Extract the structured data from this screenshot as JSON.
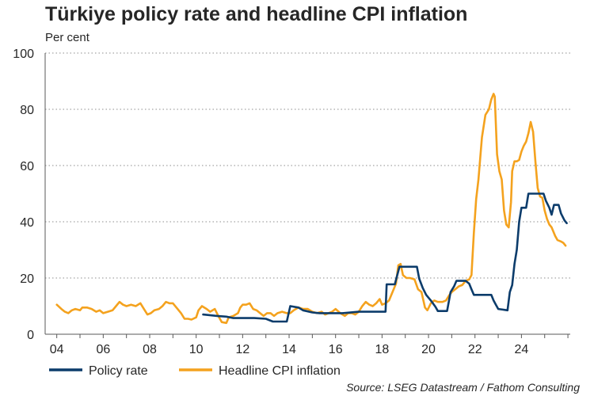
{
  "chart_data": {
    "type": "line",
    "title": "Türkiye policy rate and headline CPI inflation",
    "ylabel": "Per cent",
    "xlabel": "",
    "source": "Source: LSEG Datastream / Fathom Consulting",
    "xlim": [
      2003.5,
      2026.1
    ],
    "ylim": [
      0,
      100
    ],
    "yticks": [
      0,
      20,
      40,
      60,
      80,
      100
    ],
    "xticks": [
      2004,
      2006,
      2008,
      2010,
      2012,
      2014,
      2016,
      2018,
      2020,
      2022,
      2024
    ],
    "xtick_labels": [
      "04",
      "06",
      "08",
      "10",
      "12",
      "14",
      "16",
      "18",
      "20",
      "22",
      "24"
    ],
    "legend_position": "bottom-left",
    "series": [
      {
        "name": "Policy rate",
        "color": "#0c3c6b",
        "points": [
          [
            2010.3,
            7
          ],
          [
            2010.9,
            6.5
          ],
          [
            2011.3,
            6.25
          ],
          [
            2011.6,
            5.75
          ],
          [
            2012.5,
            5.75
          ],
          [
            2013.0,
            5.5
          ],
          [
            2013.3,
            4.5
          ],
          [
            2013.9,
            4.5
          ],
          [
            2014.05,
            10
          ],
          [
            2014.4,
            9.5
          ],
          [
            2014.6,
            8.5
          ],
          [
            2015.0,
            7.75
          ],
          [
            2015.3,
            7.5
          ],
          [
            2016.3,
            7.5
          ],
          [
            2017.0,
            8
          ],
          [
            2018.0,
            8
          ],
          [
            2018.15,
            8
          ],
          [
            2018.2,
            17.75
          ],
          [
            2018.55,
            17.75
          ],
          [
            2018.75,
            24
          ],
          [
            2019.5,
            24
          ],
          [
            2019.6,
            19.75
          ],
          [
            2019.75,
            16.5
          ],
          [
            2019.9,
            14
          ],
          [
            2020.1,
            12
          ],
          [
            2020.3,
            9.75
          ],
          [
            2020.4,
            8.25
          ],
          [
            2020.8,
            8.25
          ],
          [
            2020.95,
            15
          ],
          [
            2021.1,
            17
          ],
          [
            2021.2,
            19
          ],
          [
            2021.6,
            19
          ],
          [
            2021.75,
            18
          ],
          [
            2021.85,
            16
          ],
          [
            2021.95,
            14
          ],
          [
            2022.7,
            14
          ],
          [
            2022.8,
            12
          ],
          [
            2022.9,
            10.5
          ],
          [
            2023.0,
            9
          ],
          [
            2023.4,
            8.5
          ],
          [
            2023.5,
            15
          ],
          [
            2023.6,
            17.5
          ],
          [
            2023.7,
            25
          ],
          [
            2023.8,
            30
          ],
          [
            2023.9,
            40
          ],
          [
            2024.0,
            45
          ],
          [
            2024.2,
            45
          ],
          [
            2024.3,
            50
          ],
          [
            2024.95,
            50
          ],
          [
            2025.05,
            47.5
          ],
          [
            2025.2,
            45
          ],
          [
            2025.3,
            42.5
          ],
          [
            2025.4,
            46
          ],
          [
            2025.6,
            46
          ],
          [
            2025.7,
            43
          ],
          [
            2025.85,
            40.5
          ],
          [
            2025.95,
            39.5
          ]
        ]
      },
      {
        "name": "Headline CPI inflation",
        "color": "#f4a21e",
        "points": [
          [
            2004.0,
            10.5
          ],
          [
            2004.2,
            9
          ],
          [
            2004.35,
            8
          ],
          [
            2004.5,
            7.5
          ],
          [
            2004.65,
            8.5
          ],
          [
            2004.8,
            9
          ],
          [
            2005.0,
            8.5
          ],
          [
            2005.1,
            9.5
          ],
          [
            2005.3,
            9.5
          ],
          [
            2005.5,
            9
          ],
          [
            2005.7,
            8
          ],
          [
            2005.85,
            8.5
          ],
          [
            2006.0,
            7.5
          ],
          [
            2006.2,
            8
          ],
          [
            2006.4,
            8.5
          ],
          [
            2006.55,
            10
          ],
          [
            2006.7,
            11.5
          ],
          [
            2006.85,
            10.5
          ],
          [
            2007.0,
            10
          ],
          [
            2007.2,
            10.5
          ],
          [
            2007.4,
            10
          ],
          [
            2007.6,
            11
          ],
          [
            2007.75,
            9
          ],
          [
            2007.9,
            7
          ],
          [
            2008.05,
            7.5
          ],
          [
            2008.2,
            8.5
          ],
          [
            2008.4,
            9
          ],
          [
            2008.55,
            10
          ],
          [
            2008.7,
            11.5
          ],
          [
            2008.85,
            11
          ],
          [
            2009.0,
            11
          ],
          [
            2009.2,
            9
          ],
          [
            2009.35,
            7.5
          ],
          [
            2009.5,
            5.5
          ],
          [
            2009.65,
            5.5
          ],
          [
            2009.8,
            5.2
          ],
          [
            2010.0,
            6
          ],
          [
            2010.1,
            8.5
          ],
          [
            2010.25,
            10
          ],
          [
            2010.45,
            9
          ],
          [
            2010.6,
            8
          ],
          [
            2010.8,
            9
          ],
          [
            2010.95,
            6.5
          ],
          [
            2011.1,
            4.3
          ],
          [
            2011.3,
            4
          ],
          [
            2011.4,
            6
          ],
          [
            2011.6,
            6.5
          ],
          [
            2011.8,
            7.5
          ],
          [
            2011.9,
            9.5
          ],
          [
            2012.0,
            10.5
          ],
          [
            2012.15,
            10.5
          ],
          [
            2012.3,
            11
          ],
          [
            2012.45,
            9
          ],
          [
            2012.6,
            8.5
          ],
          [
            2012.75,
            7.5
          ],
          [
            2012.9,
            6.5
          ],
          [
            2013.05,
            7.5
          ],
          [
            2013.2,
            7.5
          ],
          [
            2013.35,
            6.5
          ],
          [
            2013.5,
            7.5
          ],
          [
            2013.7,
            8
          ],
          [
            2013.9,
            7.5
          ],
          [
            2014.05,
            7.5
          ],
          [
            2014.2,
            8.5
          ],
          [
            2014.4,
            9.5
          ],
          [
            2014.6,
            9
          ],
          [
            2014.8,
            9
          ],
          [
            2015.0,
            8
          ],
          [
            2015.2,
            7.5
          ],
          [
            2015.4,
            8
          ],
          [
            2015.55,
            7
          ],
          [
            2015.7,
            7.5
          ],
          [
            2015.85,
            8
          ],
          [
            2016.0,
            9
          ],
          [
            2016.2,
            7.5
          ],
          [
            2016.4,
            6.5
          ],
          [
            2016.55,
            7.5
          ],
          [
            2016.7,
            7.5
          ],
          [
            2016.85,
            7
          ],
          [
            2017.0,
            8
          ],
          [
            2017.15,
            10
          ],
          [
            2017.3,
            11.5
          ],
          [
            2017.45,
            10.5
          ],
          [
            2017.6,
            10
          ],
          [
            2017.75,
            11
          ],
          [
            2017.9,
            12.5
          ],
          [
            2018.0,
            10.5
          ],
          [
            2018.15,
            11
          ],
          [
            2018.3,
            12
          ],
          [
            2018.45,
            15
          ],
          [
            2018.6,
            18
          ],
          [
            2018.7,
            24.5
          ],
          [
            2018.8,
            25
          ],
          [
            2018.9,
            21
          ],
          [
            2019.05,
            20
          ],
          [
            2019.2,
            20
          ],
          [
            2019.4,
            19.5
          ],
          [
            2019.55,
            16
          ],
          [
            2019.7,
            15
          ],
          [
            2019.85,
            9.5
          ],
          [
            2019.95,
            8.5
          ],
          [
            2020.1,
            11
          ],
          [
            2020.25,
            12
          ],
          [
            2020.4,
            11.5
          ],
          [
            2020.6,
            11.5
          ],
          [
            2020.75,
            12
          ],
          [
            2020.9,
            14
          ],
          [
            2021.0,
            15
          ],
          [
            2021.15,
            16
          ],
          [
            2021.3,
            17
          ],
          [
            2021.45,
            17.5
          ],
          [
            2021.6,
            19
          ],
          [
            2021.75,
            19.5
          ],
          [
            2021.85,
            21
          ],
          [
            2021.95,
            36
          ],
          [
            2022.05,
            48
          ],
          [
            2022.15,
            55
          ],
          [
            2022.3,
            70
          ],
          [
            2022.45,
            78
          ],
          [
            2022.6,
            80
          ],
          [
            2022.7,
            83.5
          ],
          [
            2022.8,
            85.5
          ],
          [
            2022.85,
            84.5
          ],
          [
            2022.95,
            64
          ],
          [
            2023.05,
            58
          ],
          [
            2023.15,
            55
          ],
          [
            2023.25,
            44
          ],
          [
            2023.35,
            39
          ],
          [
            2023.45,
            38
          ],
          [
            2023.55,
            47
          ],
          [
            2023.6,
            58
          ],
          [
            2023.7,
            61.5
          ],
          [
            2023.8,
            61.5
          ],
          [
            2023.9,
            62
          ],
          [
            2024.0,
            65
          ],
          [
            2024.1,
            67
          ],
          [
            2024.2,
            68.5
          ],
          [
            2024.3,
            71.5
          ],
          [
            2024.4,
            75.5
          ],
          [
            2024.5,
            72
          ],
          [
            2024.6,
            61.5
          ],
          [
            2024.7,
            52
          ],
          [
            2024.8,
            49
          ],
          [
            2024.9,
            48.5
          ],
          [
            2025.0,
            44
          ],
          [
            2025.1,
            41
          ],
          [
            2025.2,
            39
          ],
          [
            2025.3,
            38
          ],
          [
            2025.45,
            35
          ],
          [
            2025.55,
            33.5
          ],
          [
            2025.7,
            33
          ],
          [
            2025.8,
            32.5
          ],
          [
            2025.9,
            31.5
          ]
        ]
      }
    ]
  }
}
